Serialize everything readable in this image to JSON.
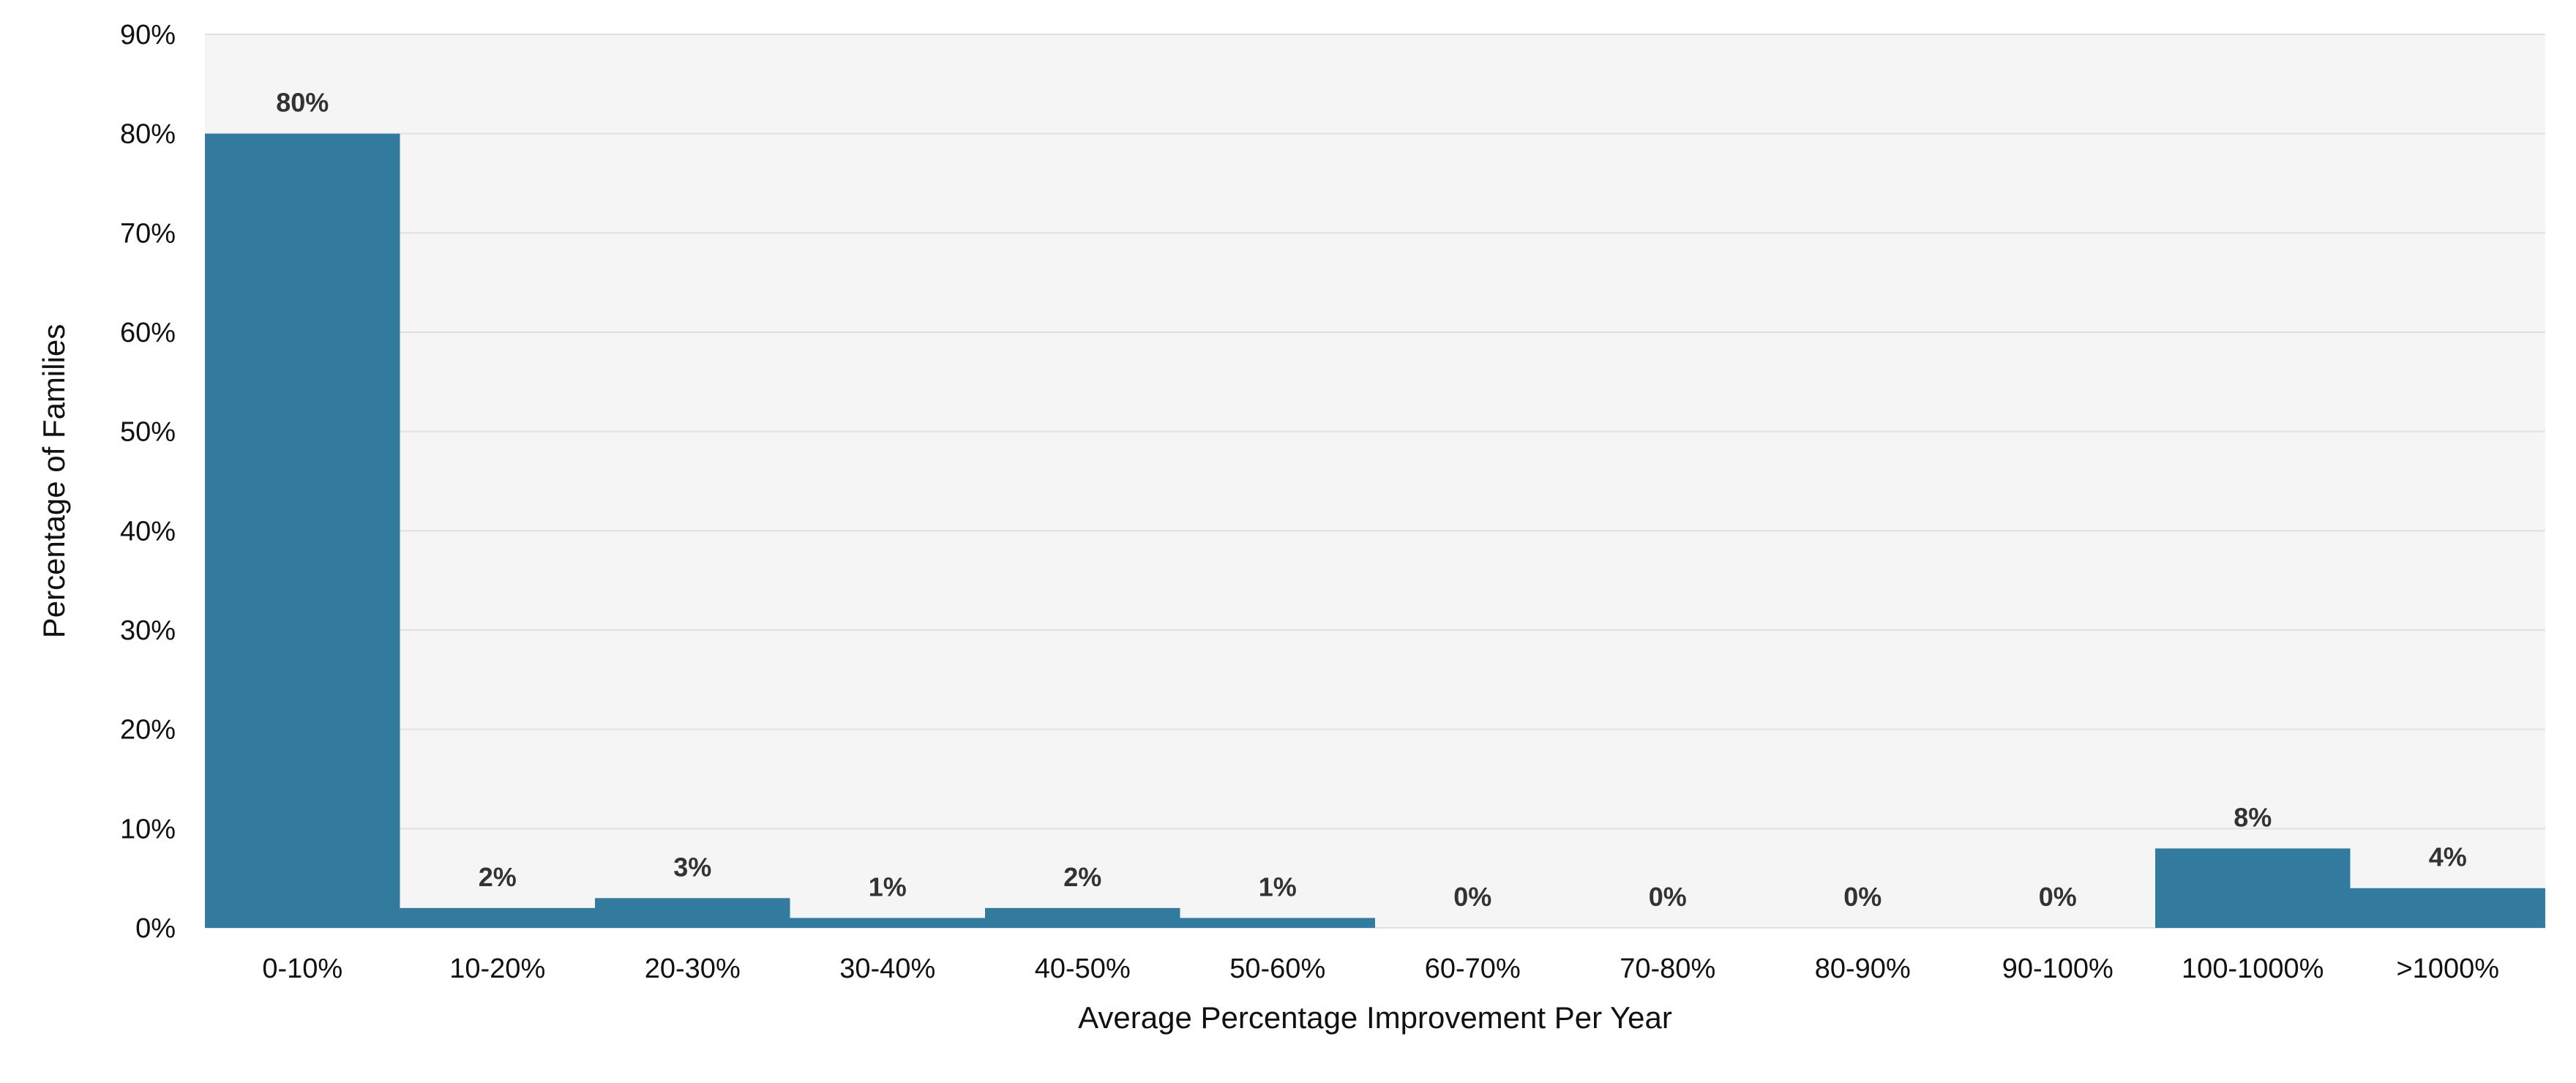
{
  "chart_data": {
    "type": "bar",
    "title": "",
    "xlabel": "Average Percentage Improvement Per Year",
    "ylabel": "Percentage of Families",
    "categories": [
      "0-10%",
      "10-20%",
      "20-30%",
      "30-40%",
      "40-50%",
      "50-60%",
      "60-70%",
      "70-80%",
      "80-90%",
      "90-100%",
      "100-1000%",
      ">1000%"
    ],
    "values": [
      80,
      2,
      3,
      1,
      2,
      1,
      0,
      0,
      0,
      0,
      8,
      4
    ],
    "data_labels": [
      "80%",
      "2%",
      "3%",
      "1%",
      "2%",
      "1%",
      "0%",
      "0%",
      "0%",
      "0%",
      "8%",
      "4%"
    ],
    "ylim": [
      0,
      90
    ],
    "yticks": [
      0,
      10,
      20,
      30,
      40,
      50,
      60,
      70,
      80,
      90
    ],
    "ytick_labels": [
      "0%",
      "10%",
      "20%",
      "30%",
      "40%",
      "50%",
      "60%",
      "70%",
      "80%",
      "90%"
    ],
    "grid": true,
    "legend": "none",
    "colors": {
      "bar": "#337b9e",
      "plot_background": "#f5f5f5",
      "gridline": "#e0e0e0"
    }
  }
}
